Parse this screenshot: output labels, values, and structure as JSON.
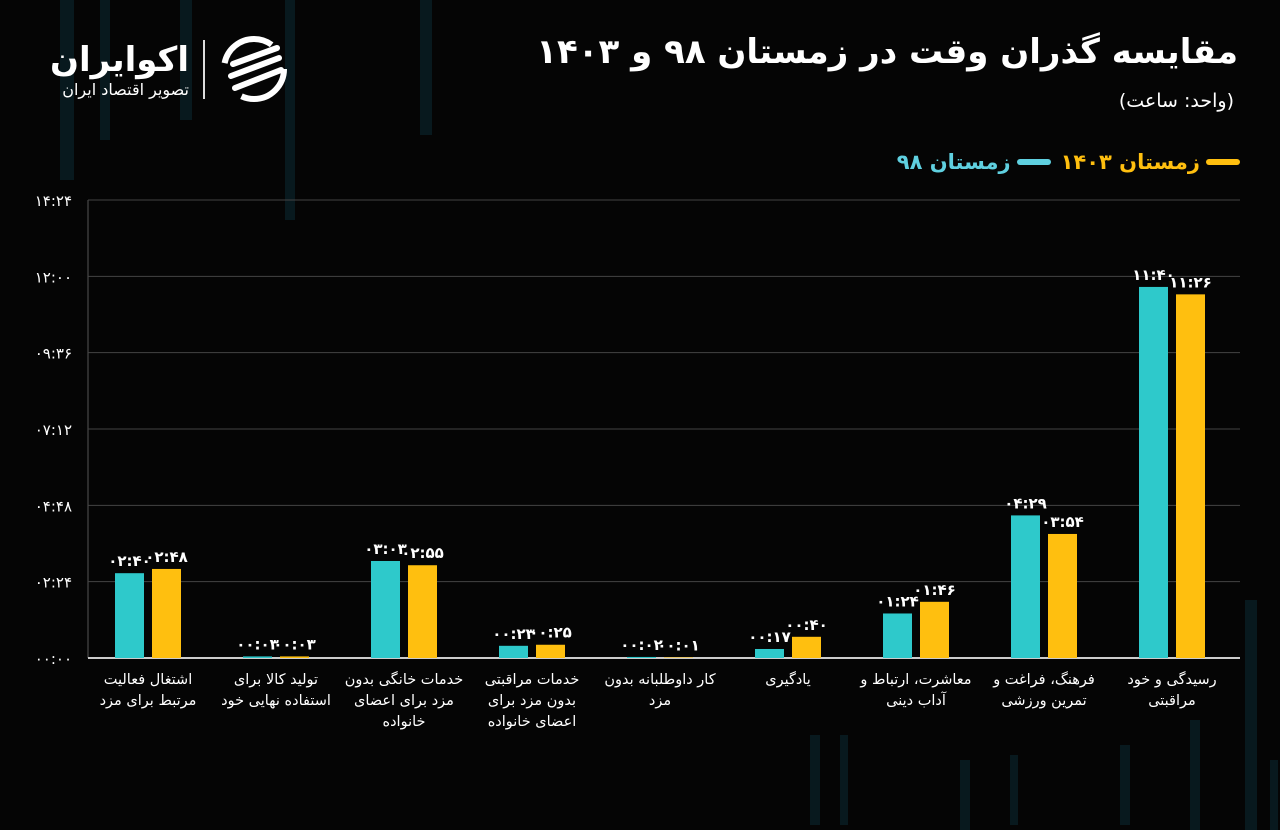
{
  "logo": {
    "name": "اکوایران",
    "tagline": "تصویر اقتصاد ایران"
  },
  "chart_data": {
    "type": "bar",
    "title": "مقایسه گذران وقت در زمستان ۹۸ و ۱۴۰۳",
    "subtitle": "(واحد: ساعت)",
    "ylim": [
      "00:00",
      "14:24"
    ],
    "yticks": [
      "00:00",
      "02:24",
      "04:48",
      "07:12",
      "09:36",
      "12:00",
      "14:24"
    ],
    "ytick_labels": [
      "۰۰:۰۰",
      "۰۲:۲۴",
      "۰۴:۴۸",
      "۰۷:۱۲",
      "۰۹:۳۶",
      "۱۲:۰۰",
      "۱۴:۲۴"
    ],
    "grid": true,
    "legend_position": "top-right",
    "categories": [
      "اشتغال فعالیت مرتبط برای مزد",
      "تولید کالا برای استفاده نهایی خود",
      "خدمات خانگی بدون مزد برای اعضای خانواده",
      "خدمات مراقبتی بدون مزد برای اعضای خانواده",
      "کار داوطلبانه بدون مزد",
      "یادگیری",
      "معاشرت، ارتباط و آداب دینی",
      "فرهنگ، فراغت و تمرین ورزشی",
      "رسیدگی و خود مراقبتی"
    ],
    "series": [
      {
        "name": "زمستان ۹۸",
        "color": "#2ec9cb",
        "values": [
          "02:40",
          "00:03",
          "03:03",
          "00:23",
          "00:02",
          "00:17",
          "01:24",
          "04:29",
          "11:40"
        ],
        "labels": [
          "۰۲:۴۰",
          "۰۰:۰۳",
          "۰۳:۰۳",
          "۰۰:۲۳",
          "۰۰:۰۲",
          "۰۰:۱۷",
          "۰۱:۲۴",
          "۰۴:۲۹",
          "۱۱:۴۰"
        ]
      },
      {
        "name": "زمستان ۱۴۰۳",
        "color": "#ffbf0f",
        "values": [
          "02:48",
          "00:03",
          "02:55",
          "00:25",
          "00:01",
          "00:40",
          "01:46",
          "03:54",
          "11:26"
        ],
        "labels": [
          "۰۲:۴۸",
          "۰۰:۰۳",
          "۰۲:۵۵",
          "۰۰:۲۵",
          "۰۰:۰۱",
          "۰۰:۴۰",
          "۰۱:۴۶",
          "۰۳:۵۴",
          "۱۱:۲۶"
        ]
      }
    ]
  }
}
